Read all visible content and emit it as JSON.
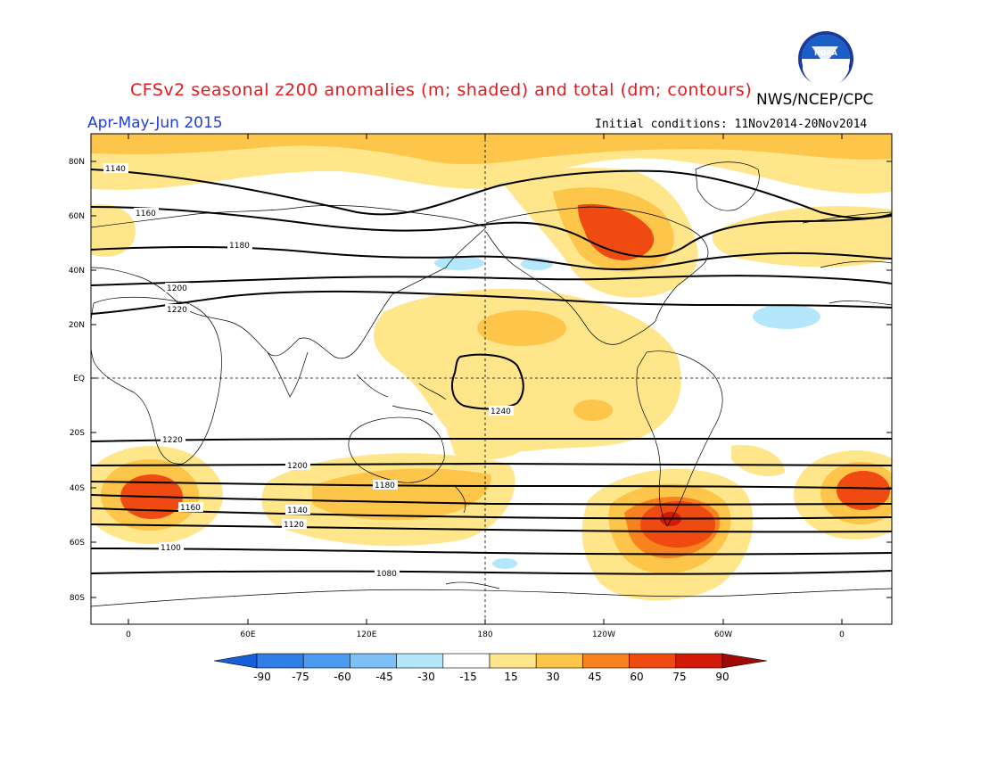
{
  "title": "CFSv2 seasonal z200 anomalies (m; shaded) and total (dm; contours)",
  "org": "NWS/NCEP/CPC",
  "period": "Apr-May-Jun 2015",
  "initial_conditions": "Initial conditions: 11Nov2014-20Nov2014",
  "logo_text": "NOAA",
  "colors": {
    "neg90": "#1560d8",
    "neg75": "#2f7fe6",
    "neg60": "#4b9bf0",
    "neg45": "#7cc0f7",
    "neg30": "#b4e7fb",
    "neg15": "#ffffff",
    "pos15": "#ffe68a",
    "pos30": "#fdc54a",
    "pos45": "#f7821f",
    "pos60": "#ee4a12",
    "pos75": "#d21a08",
    "pos90": "#a00a05"
  },
  "axes": {
    "lat_ticks": [
      "80N",
      "60N",
      "40N",
      "20N",
      "EQ",
      "20S",
      "40S",
      "60S",
      "80S"
    ],
    "lon_ticks": [
      "0",
      "60E",
      "120E",
      "180",
      "120W",
      "60W",
      "0"
    ]
  },
  "colorbar": {
    "labels": [
      "-90",
      "-75",
      "-60",
      "-45",
      "-30",
      "-15",
      "15",
      "30",
      "45",
      "60",
      "75",
      "90"
    ]
  },
  "contour_labels": [
    "1140",
    "1160",
    "1180",
    "1200",
    "1220",
    "1240",
    "1220",
    "1200",
    "1180",
    "1160",
    "1140",
    "1120",
    "1100",
    "1080"
  ]
}
